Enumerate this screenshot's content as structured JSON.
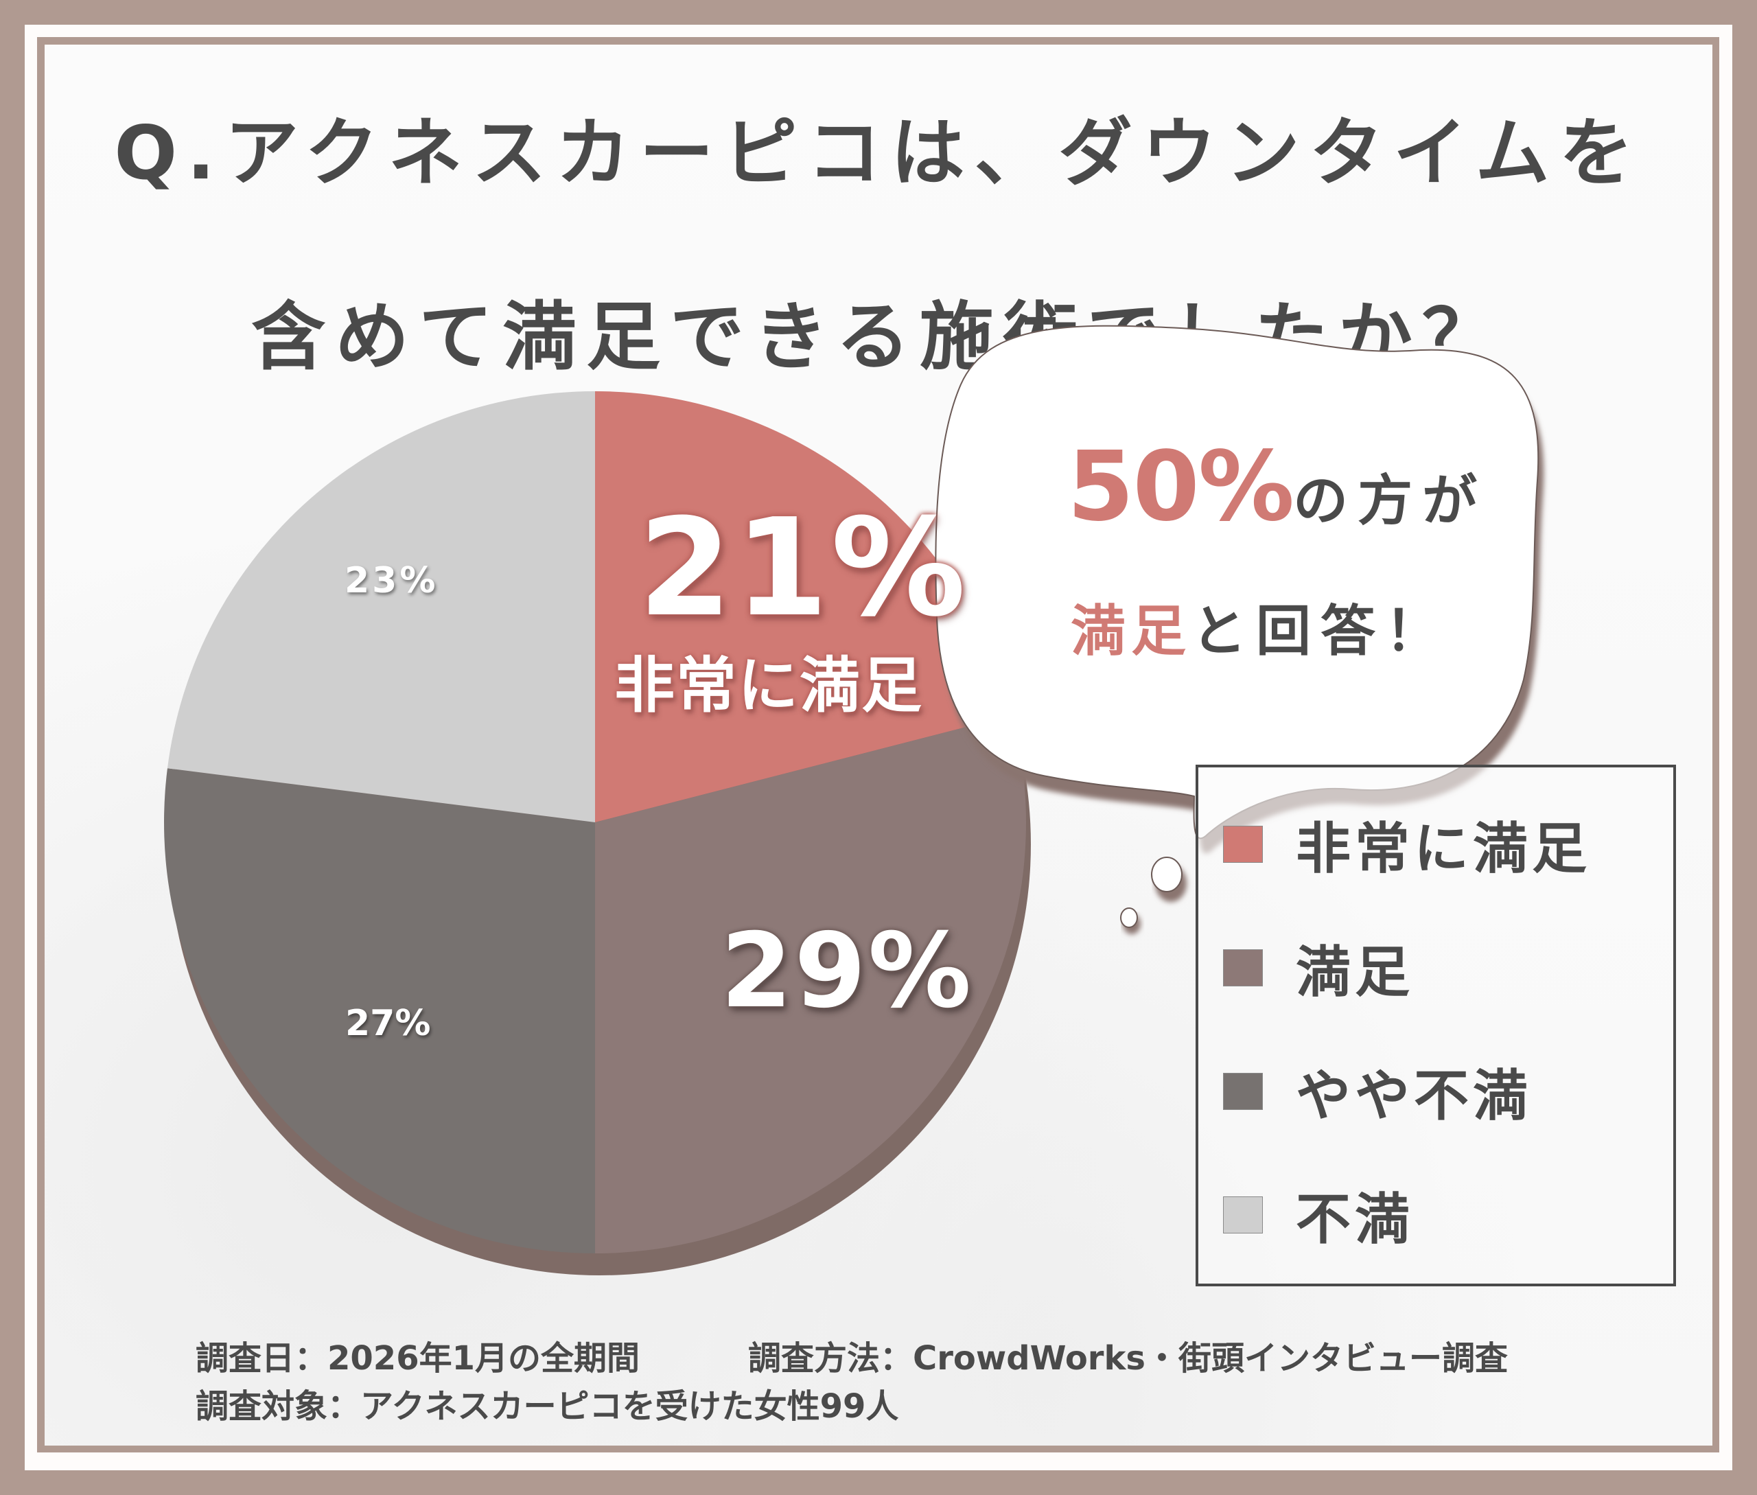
{
  "title": {
    "line1": "Q.アクネスカーピコは、ダウンタイムを",
    "line2": "含めて満足できる施術でしたか？"
  },
  "callout": {
    "highlight_pct": "50%",
    "text1": "の方が",
    "highlight_word": "満足",
    "text2": "と回答！"
  },
  "slice_labels": {
    "very_satisfied_pct": "21%",
    "very_satisfied_name": "非常に満足",
    "satisfied_pct": "29%",
    "somewhat_dissatisfied_pct": "27%",
    "dissatisfied_pct": "23%"
  },
  "legend": {
    "items": [
      {
        "label": "非常に満足",
        "color": "#D07A74"
      },
      {
        "label": "満足",
        "color": "#8D7977"
      },
      {
        "label": "やや不満",
        "color": "#777270"
      },
      {
        "label": "不満",
        "color": "#CFCFCF"
      }
    ]
  },
  "footer": {
    "survey_date": "調査日：2026年1月の全期間",
    "survey_method": "調査方法：CrowdWorks・街頭インタビュー調査",
    "survey_target": "調査対象：アクネスカーピコを受けた女性99人"
  },
  "colors": {
    "frame": "#B09A91",
    "accent": "#D07A74",
    "text": "#4A4A4A",
    "pie_shadow": "#7F6B66"
  },
  "chart_data": {
    "type": "pie",
    "title": "Q.アクネスカーピコは、ダウンタイムを含めて満足できる施術でしたか？",
    "categories": [
      "非常に満足",
      "満足",
      "やや不満",
      "不満"
    ],
    "values": [
      21,
      29,
      27,
      23
    ],
    "unit": "%",
    "colors": [
      "#D07A74",
      "#8D7977",
      "#777270",
      "#CFCFCF"
    ],
    "start_angle_deg": 0,
    "direction": "clockwise",
    "legend_position": "right",
    "annotations": [
      "50%の方が満足と回答！"
    ],
    "sample_size": 99
  }
}
